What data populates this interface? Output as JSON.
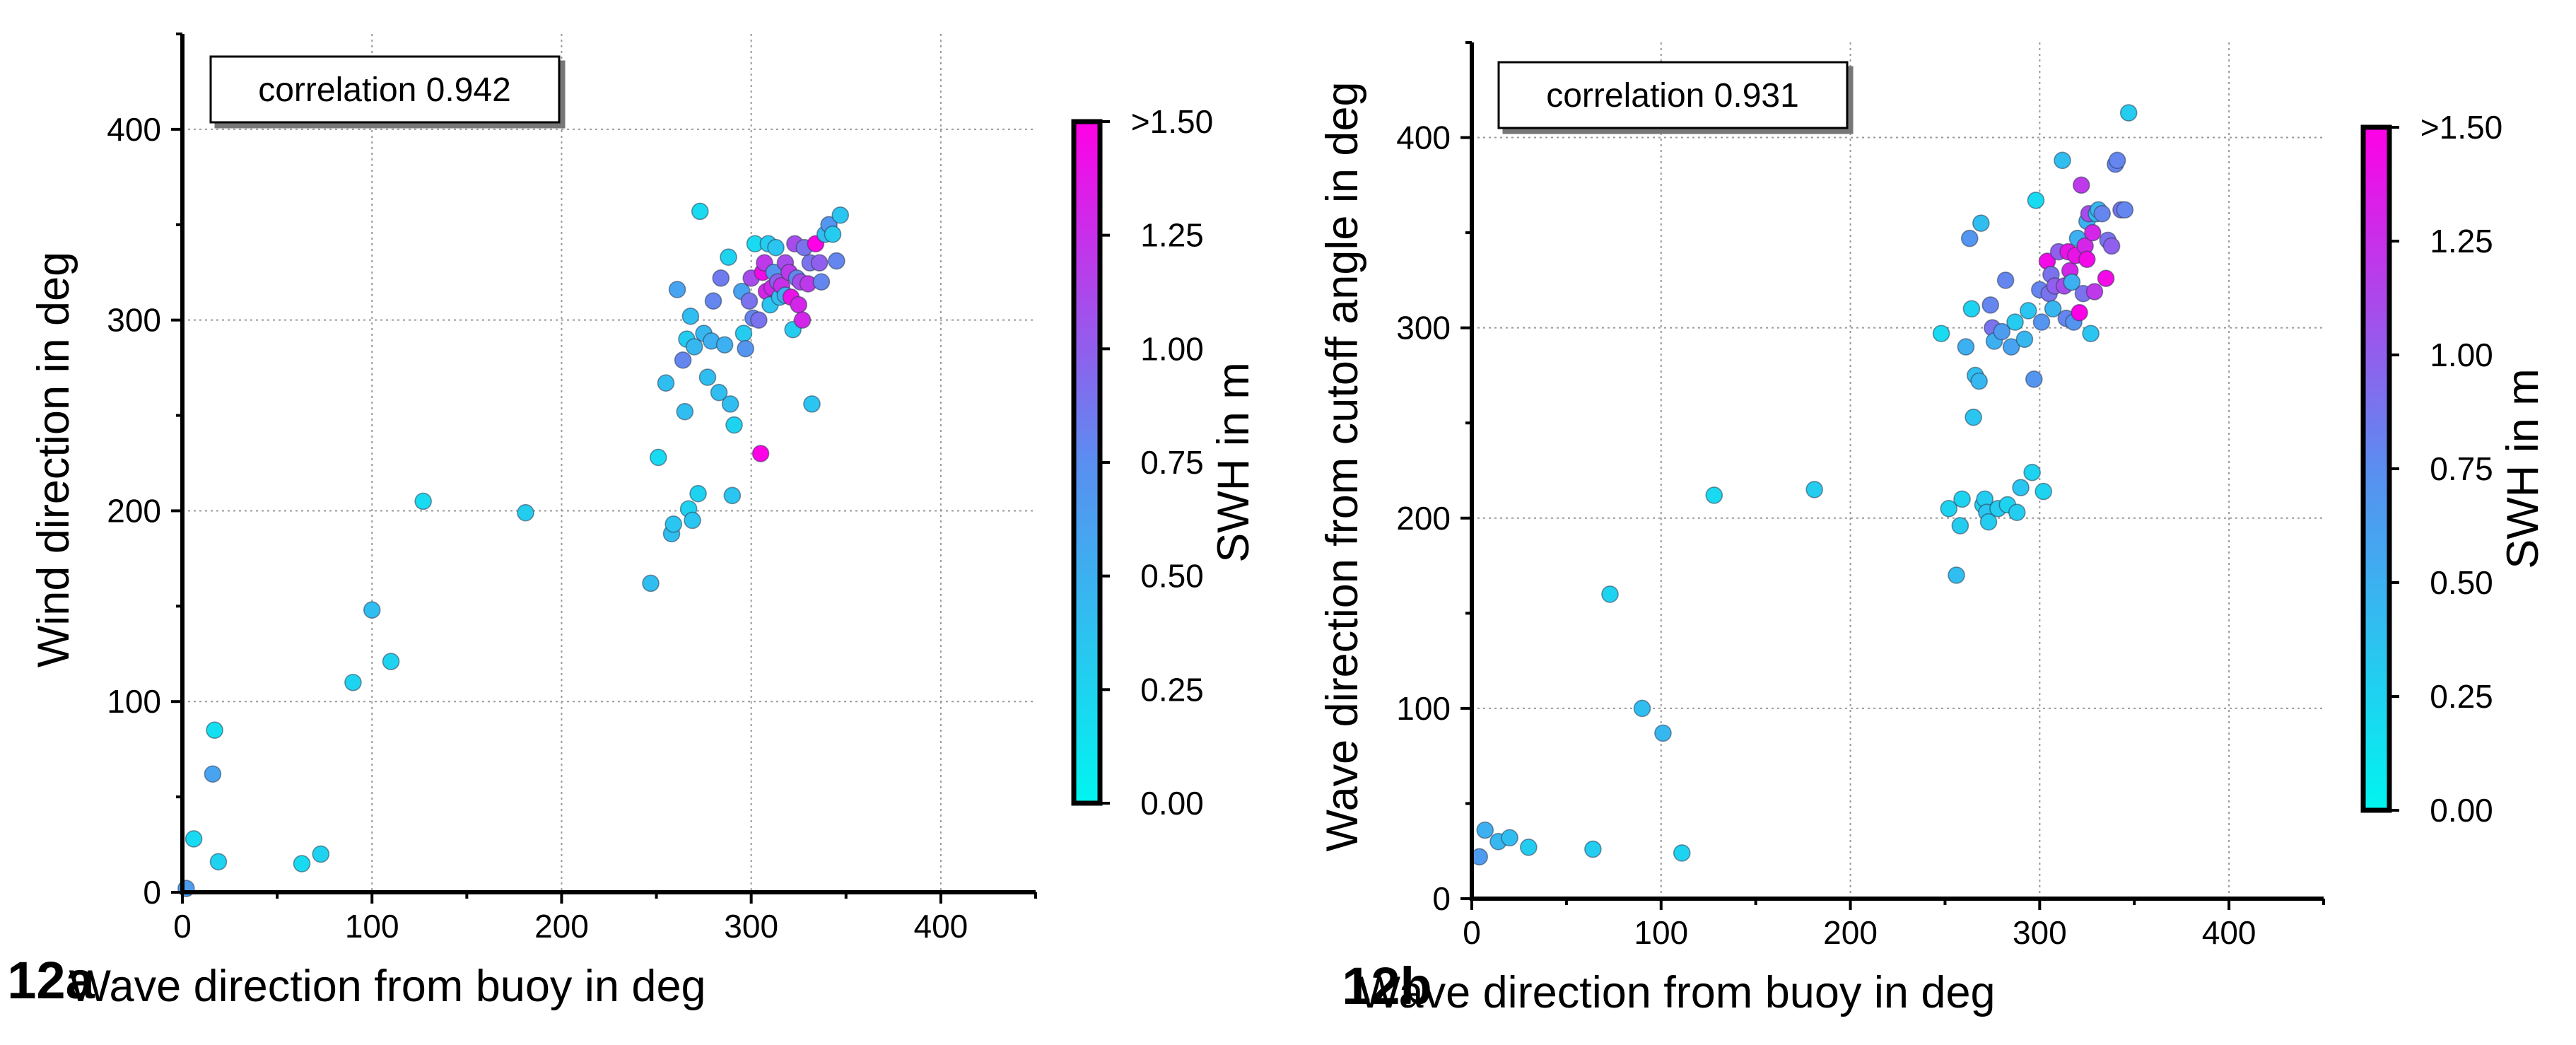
{
  "colorbar": {
    "label": "SWH in m",
    "ticks": [
      "0.00",
      "0.25",
      "0.50",
      "0.75",
      "1.00",
      "1.25",
      ">1.50"
    ],
    "min": 0,
    "max": 1.5,
    "color_low": "#00f5f0",
    "color_mid": "#5a8ef0",
    "color_high": "#ff00e6"
  },
  "chart_data": [
    {
      "type": "scatter",
      "panel_label": "12a",
      "xlabel": "Wave direction from buoy in deg",
      "ylabel": "Wind direction in deg",
      "annotation": "correlation 0.942",
      "xlim": [
        0,
        450
      ],
      "ylim": [
        0,
        450
      ],
      "xticks": [
        0,
        100,
        200,
        300,
        400
      ],
      "yticks": [
        0,
        100,
        200,
        300,
        400
      ],
      "grid": true,
      "points": [
        [
          2,
          2,
          0.65
        ],
        [
          6,
          28,
          0.2
        ],
        [
          16,
          62,
          0.6
        ],
        [
          17,
          85,
          0.15
        ],
        [
          19,
          16,
          0.25
        ],
        [
          63,
          15,
          0.2
        ],
        [
          73,
          20,
          0.25
        ],
        [
          90,
          110,
          0.25
        ],
        [
          100,
          148,
          0.4
        ],
        [
          110,
          121,
          0.25
        ],
        [
          127,
          205,
          0.2
        ],
        [
          181,
          199,
          0.3
        ],
        [
          247,
          162,
          0.4
        ],
        [
          251,
          228,
          0.2
        ],
        [
          255,
          267,
          0.4
        ],
        [
          258,
          188,
          0.4
        ],
        [
          259,
          193,
          0.35
        ],
        [
          261,
          316,
          0.6
        ],
        [
          264,
          279,
          0.8
        ],
        [
          265,
          252,
          0.4
        ],
        [
          266,
          290,
          0.3
        ],
        [
          267,
          201,
          0.25
        ],
        [
          268,
          302,
          0.4
        ],
        [
          269,
          195,
          0.35
        ],
        [
          270,
          286,
          0.45
        ],
        [
          272,
          209,
          0.25
        ],
        [
          273,
          357,
          0.2
        ],
        [
          275,
          293,
          0.45
        ],
        [
          277,
          270,
          0.4
        ],
        [
          279,
          289,
          0.5
        ],
        [
          280,
          310,
          0.8
        ],
        [
          283,
          262,
          0.4
        ],
        [
          284,
          322,
          0.85
        ],
        [
          286,
          287,
          0.5
        ],
        [
          288,
          333,
          0.25
        ],
        [
          289,
          256,
          0.4
        ],
        [
          290,
          208,
          0.35
        ],
        [
          291,
          245,
          0.25
        ],
        [
          295,
          315,
          0.6
        ],
        [
          296,
          293,
          0.3
        ],
        [
          297,
          285,
          0.7
        ],
        [
          299,
          310,
          0.9
        ],
        [
          300,
          322,
          1.1
        ],
        [
          301,
          301,
          0.8
        ],
        [
          302,
          340,
          0.2
        ],
        [
          304,
          300,
          0.9
        ],
        [
          305,
          230,
          1.5
        ],
        [
          306,
          325,
          1.45
        ],
        [
          307,
          330,
          1.2
        ],
        [
          308,
          315,
          1.3
        ],
        [
          309,
          340,
          0.3
        ],
        [
          310,
          308,
          0.35
        ],
        [
          311,
          317,
          1.3
        ],
        [
          312,
          325,
          0.7
        ],
        [
          313,
          338,
          0.35
        ],
        [
          314,
          320,
          1.0
        ],
        [
          315,
          312,
          0.4
        ],
        [
          316,
          318,
          1.25
        ],
        [
          318,
          313,
          0.5
        ],
        [
          318,
          330,
          1.1
        ],
        [
          320,
          325,
          1.2
        ],
        [
          321,
          312,
          1.4
        ],
        [
          322,
          295,
          0.3
        ],
        [
          323,
          340,
          1.1
        ],
        [
          324,
          322,
          0.8
        ],
        [
          325,
          308,
          1.3
        ],
        [
          326,
          320,
          1.1
        ],
        [
          327,
          300,
          1.3
        ],
        [
          328,
          338,
          0.9
        ],
        [
          330,
          319,
          1.2
        ],
        [
          331,
          330,
          0.9
        ],
        [
          332,
          256,
          0.35
        ],
        [
          334,
          340,
          1.5
        ],
        [
          336,
          330,
          1.0
        ],
        [
          337,
          320,
          0.8
        ],
        [
          339,
          345,
          0.4
        ],
        [
          341,
          350,
          0.7
        ],
        [
          343,
          345,
          0.3
        ],
        [
          345,
          331,
          0.8
        ],
        [
          347,
          355,
          0.35
        ]
      ]
    },
    {
      "type": "scatter",
      "panel_label": "12b",
      "xlabel": "Wave direction from buoy in deg",
      "ylabel": "Wave direction from cutoff angle in deg",
      "annotation": "correlation 0.931",
      "xlim": [
        0,
        450
      ],
      "ylim": [
        0,
        450
      ],
      "xticks": [
        0,
        100,
        200,
        300,
        400
      ],
      "yticks": [
        0,
        100,
        200,
        300,
        400
      ],
      "grid": true,
      "points": [
        [
          4,
          22,
          0.65
        ],
        [
          7,
          36,
          0.5
        ],
        [
          14,
          30,
          0.45
        ],
        [
          20,
          32,
          0.4
        ],
        [
          30,
          27,
          0.3
        ],
        [
          64,
          26,
          0.3
        ],
        [
          73,
          160,
          0.25
        ],
        [
          90,
          100,
          0.4
        ],
        [
          101,
          87,
          0.45
        ],
        [
          111,
          24,
          0.25
        ],
        [
          128,
          212,
          0.2
        ],
        [
          181,
          215,
          0.3
        ],
        [
          248,
          297,
          0.2
        ],
        [
          252,
          205,
          0.25
        ],
        [
          256,
          170,
          0.4
        ],
        [
          258,
          196,
          0.3
        ],
        [
          259,
          210,
          0.25
        ],
        [
          261,
          290,
          0.5
        ],
        [
          263,
          347,
          0.7
        ],
        [
          264,
          310,
          0.25
        ],
        [
          265,
          253,
          0.35
        ],
        [
          266,
          275,
          0.4
        ],
        [
          268,
          272,
          0.45
        ],
        [
          269,
          355,
          0.4
        ],
        [
          270,
          207,
          0.25
        ],
        [
          271,
          210,
          0.3
        ],
        [
          272,
          203,
          0.35
        ],
        [
          273,
          198,
          0.3
        ],
        [
          274,
          312,
          0.8
        ],
        [
          275,
          300,
          0.9
        ],
        [
          276,
          293,
          0.5
        ],
        [
          278,
          205,
          0.3
        ],
        [
          280,
          298,
          0.65
        ],
        [
          282,
          325,
          0.8
        ],
        [
          283,
          207,
          0.25
        ],
        [
          285,
          290,
          0.6
        ],
        [
          287,
          303,
          0.3
        ],
        [
          288,
          203,
          0.3
        ],
        [
          290,
          216,
          0.35
        ],
        [
          292,
          294,
          0.45
        ],
        [
          294,
          309,
          0.35
        ],
        [
          296,
          224,
          0.25
        ],
        [
          297,
          273,
          0.7
        ],
        [
          298,
          367,
          0.2
        ],
        [
          300,
          320,
          0.8
        ],
        [
          301,
          303,
          0.7
        ],
        [
          302,
          214,
          0.25
        ],
        [
          304,
          335,
          1.45
        ],
        [
          305,
          318,
          0.9
        ],
        [
          306,
          328,
          0.9
        ],
        [
          307,
          310,
          0.45
        ],
        [
          308,
          322,
          1.0
        ],
        [
          310,
          340,
          1.0
        ],
        [
          312,
          388,
          0.4
        ],
        [
          313,
          322,
          1.1
        ],
        [
          314,
          305,
          0.8
        ],
        [
          315,
          340,
          1.4
        ],
        [
          316,
          330,
          1.3
        ],
        [
          317,
          324,
          0.5
        ],
        [
          318,
          303,
          0.7
        ],
        [
          319,
          338,
          1.4
        ],
        [
          320,
          347,
          0.5
        ],
        [
          321,
          308,
          1.5
        ],
        [
          322,
          375,
          1.2
        ],
        [
          323,
          318,
          0.9
        ],
        [
          324,
          343,
          1.3
        ],
        [
          325,
          356,
          0.5
        ],
        [
          325,
          336,
          1.45
        ],
        [
          326,
          360,
          1.1
        ],
        [
          327,
          297,
          0.35
        ],
        [
          328,
          350,
          1.3
        ],
        [
          329,
          319,
          1.2
        ],
        [
          330,
          360,
          0.4
        ],
        [
          331,
          362,
          0.45
        ],
        [
          333,
          360,
          0.8
        ],
        [
          335,
          326,
          1.45
        ],
        [
          336,
          346,
          0.9
        ],
        [
          338,
          343,
          1.0
        ],
        [
          340,
          386,
          0.8
        ],
        [
          341,
          388,
          0.8
        ],
        [
          343,
          362,
          0.9
        ],
        [
          345,
          362,
          0.8
        ],
        [
          347,
          413,
          0.3
        ]
      ]
    }
  ]
}
